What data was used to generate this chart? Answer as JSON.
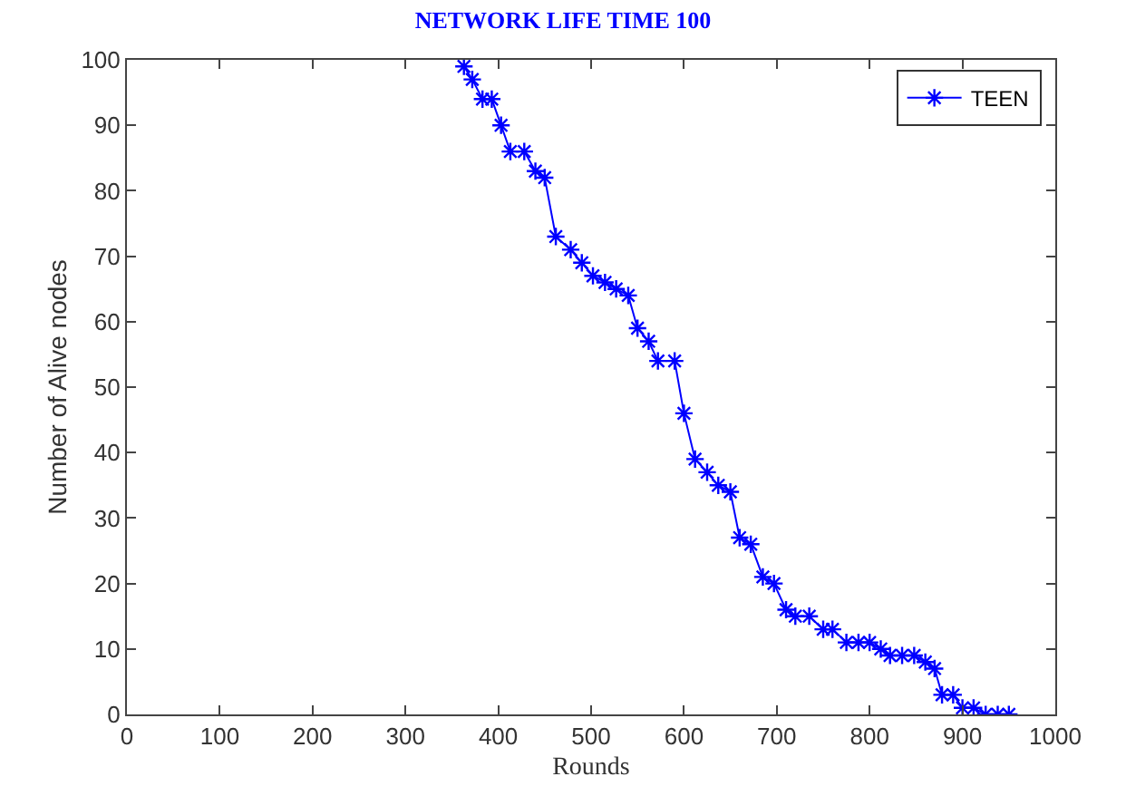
{
  "chart_data": {
    "type": "line",
    "title": "NETWORK LIFE TIME 100",
    "xlabel": "Rounds",
    "ylabel": "Number of Alive nodes",
    "xlim": [
      0,
      1000
    ],
    "xticks": [
      0,
      100,
      200,
      300,
      400,
      500,
      600,
      700,
      800,
      900,
      1000
    ],
    "ylim": [
      0,
      100
    ],
    "yticks": [
      0,
      10,
      20,
      30,
      40,
      50,
      60,
      70,
      80,
      90,
      100
    ],
    "legend": "top right",
    "marker": "cross",
    "line_style": "solid",
    "series": [
      {
        "name": "TEEN",
        "color": "#0000ff",
        "x": [
          363,
          372,
          383,
          393,
          403,
          413,
          428,
          440,
          450,
          462,
          478,
          490,
          502,
          515,
          527,
          540,
          550,
          562,
          572,
          590,
          600,
          612,
          625,
          637,
          650,
          660,
          672,
          685,
          697,
          710,
          720,
          735,
          750,
          760,
          775,
          788,
          800,
          812,
          822,
          835,
          848,
          860,
          870,
          878,
          890,
          900,
          912,
          925,
          938,
          950
        ],
        "values": [
          99,
          97,
          94,
          94,
          90,
          86,
          86,
          83,
          82,
          73,
          71,
          69,
          67,
          66,
          65,
          64,
          59,
          57,
          54,
          54,
          46,
          39,
          37,
          35,
          34,
          27,
          26,
          21,
          20,
          16,
          15,
          15,
          13,
          13,
          11,
          11,
          11,
          10,
          9,
          9,
          9,
          8,
          7,
          3,
          3,
          1,
          1,
          0,
          0,
          0
        ]
      }
    ]
  }
}
